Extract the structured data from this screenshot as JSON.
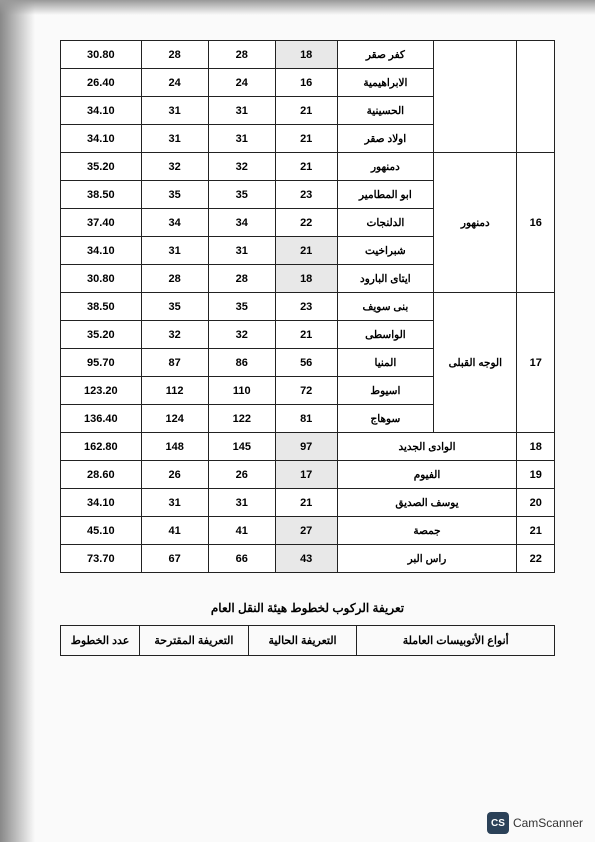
{
  "main_table": {
    "groups": [
      {
        "num": "",
        "region": "",
        "rows": [
          {
            "dest": "كفر صقر",
            "v1": "18",
            "v2": "28",
            "v3": "28",
            "v4": "30.80",
            "shade": true
          },
          {
            "dest": "الابراهيمية",
            "v1": "16",
            "v2": "24",
            "v3": "24",
            "v4": "26.40",
            "shade": false
          },
          {
            "dest": "الحسينية",
            "v1": "21",
            "v2": "31",
            "v3": "31",
            "v4": "34.10",
            "shade": false
          },
          {
            "dest": "اولاد صقر",
            "v1": "21",
            "v2": "31",
            "v3": "31",
            "v4": "34.10",
            "shade": false
          }
        ]
      },
      {
        "num": "16",
        "region": "دمنهور",
        "rows": [
          {
            "dest": "دمنهور",
            "v1": "21",
            "v2": "32",
            "v3": "32",
            "v4": "35.20",
            "shade": false
          },
          {
            "dest": "ابو المطامير",
            "v1": "23",
            "v2": "35",
            "v3": "35",
            "v4": "38.50",
            "shade": false
          },
          {
            "dest": "الدلنجات",
            "v1": "22",
            "v2": "34",
            "v3": "34",
            "v4": "37.40",
            "shade": false
          },
          {
            "dest": "شبراخيت",
            "v1": "21",
            "v2": "31",
            "v3": "31",
            "v4": "34.10",
            "shade": true
          },
          {
            "dest": "ايتاى البارود",
            "v1": "18",
            "v2": "28",
            "v3": "28",
            "v4": "30.80",
            "shade": true
          }
        ]
      },
      {
        "num": "17",
        "region": "الوجه القبلى",
        "rows": [
          {
            "dest": "بنى سويف",
            "v1": "23",
            "v2": "35",
            "v3": "35",
            "v4": "38.50",
            "shade": false
          },
          {
            "dest": "الواسطى",
            "v1": "21",
            "v2": "32",
            "v3": "32",
            "v4": "35.20",
            "shade": false
          },
          {
            "dest": "المنيا",
            "v1": "56",
            "v2": "86",
            "v3": "87",
            "v4": "95.70",
            "shade": false
          },
          {
            "dest": "اسيوط",
            "v1": "72",
            "v2": "110",
            "v3": "112",
            "v4": "123.20",
            "shade": false
          },
          {
            "dest": "سوهاج",
            "v1": "81",
            "v2": "122",
            "v3": "124",
            "v4": "136.40",
            "shade": false
          }
        ]
      }
    ],
    "wide_rows": [
      {
        "num": "18",
        "dest": "الوادى الجديد",
        "v1": "97",
        "v2": "145",
        "v3": "148",
        "v4": "162.80",
        "shade": true
      },
      {
        "num": "19",
        "dest": "الفيوم",
        "v1": "17",
        "v2": "26",
        "v3": "26",
        "v4": "28.60",
        "shade": true
      },
      {
        "num": "20",
        "dest": "يوسف الصديق",
        "v1": "21",
        "v2": "31",
        "v3": "31",
        "v4": "34.10",
        "shade": false
      },
      {
        "num": "21",
        "dest": "جمصة",
        "v1": "27",
        "v2": "41",
        "v3": "41",
        "v4": "45.10",
        "shade": true
      },
      {
        "num": "22",
        "dest": "راس البر",
        "v1": "43",
        "v2": "66",
        "v3": "67",
        "v4": "73.70",
        "shade": true
      }
    ]
  },
  "caption": "تعريفة الركوب لخطوط هيئة النقل العام",
  "header_table": {
    "h1": "أنواع الأتوبيسات العاملة",
    "h2": "التعريفة الحالية",
    "h3": "التعريفة المقترحة",
    "h4": "عدد الخطوط"
  },
  "camscanner": {
    "badge": "CS",
    "text": "CamScanner"
  }
}
